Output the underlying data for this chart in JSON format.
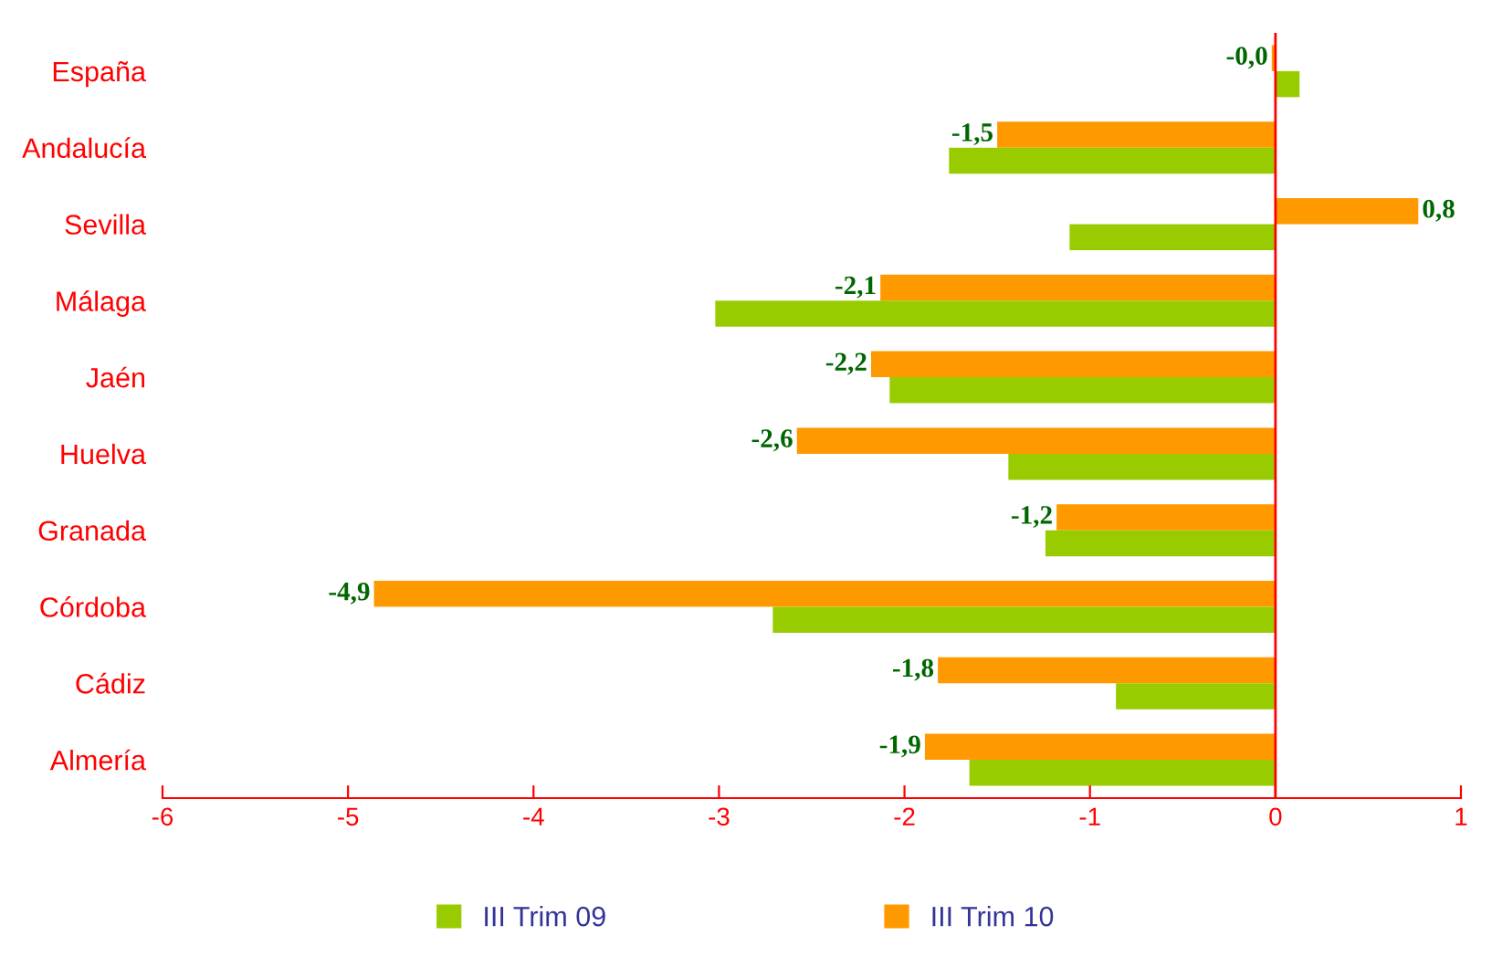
{
  "chart_data": {
    "type": "bar",
    "orientation": "horizontal",
    "categories": [
      "España",
      "Andalucía",
      "Sevilla",
      "Málaga",
      "Jaén",
      "Huelva",
      "Granada",
      "Córdoba",
      "Cádiz",
      "Almería"
    ],
    "series": [
      {
        "name": "III Trim 10",
        "color": "#ff9900",
        "values": [
          -0.02,
          -1.5,
          0.77,
          -2.13,
          -2.18,
          -2.58,
          -1.18,
          -4.86,
          -1.82,
          -1.89
        ],
        "value_labels": [
          "-0,0",
          "-1,5",
          "0,8",
          "-2,1",
          "-2,2",
          "-2,6",
          "-1,2",
          "-4,9",
          "-1,8",
          "-1,9"
        ]
      },
      {
        "name": "III Trim 09",
        "color": "#99cc00",
        "values": [
          0.13,
          -1.76,
          -1.11,
          -3.02,
          -2.08,
          -1.44,
          -1.24,
          -2.71,
          -0.86,
          -1.65
        ]
      }
    ],
    "xlim": [
      -6,
      1
    ],
    "xticks": [
      -6,
      -5,
      -4,
      -3,
      -2,
      -1,
      0,
      1
    ],
    "ref_lines": [
      {
        "axis": "x",
        "value": 0,
        "color": "#ff0000"
      }
    ],
    "grid": false,
    "legend": "bottom"
  }
}
